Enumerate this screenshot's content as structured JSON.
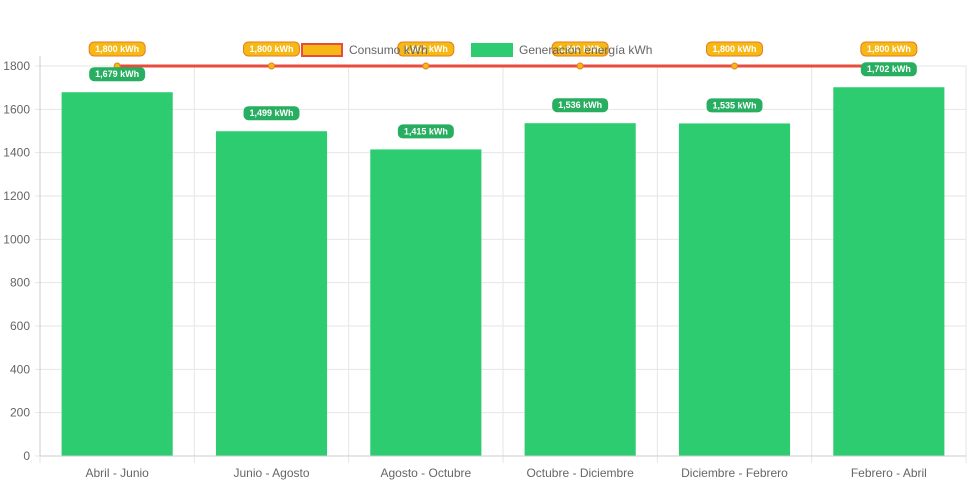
{
  "chart_data": {
    "type": "bar",
    "categories": [
      "Abril - Junio",
      "Junio - Agosto",
      "Agosto - Octubre",
      "Octubre - Diciembre",
      "Diciembre - Febrero",
      "Febrero - Abril"
    ],
    "series": [
      {
        "name": "Consumo kWh",
        "type": "line",
        "values": [
          1800,
          1800,
          1800,
          1800,
          1800,
          1800
        ],
        "labels": [
          "1,800 kWh",
          "1,800 kWh",
          "1,800 kWh",
          "1,800 kWh",
          "1,800 kWh",
          "1,800 kWh"
        ]
      },
      {
        "name": "Generación energía kWh",
        "type": "bar",
        "values": [
          1679,
          1499,
          1415,
          1536,
          1535,
          1702
        ],
        "labels": [
          "1,679 kWh",
          "1,499 kWh",
          "1,415 kWh",
          "1,536 kWh",
          "1,535 kWh",
          "1,702 kWh"
        ]
      }
    ],
    "ylim": [
      0,
      1800
    ],
    "yticks": [
      "0",
      "200",
      "400",
      "600",
      "800",
      "1000",
      "1200",
      "1400",
      "1600",
      "1800"
    ],
    "grid": true,
    "legend_position": "top",
    "colors": {
      "bar": "#2ecc71",
      "line": "#e74c3c",
      "point": "#f5b814",
      "line_badge_fill": "#f5b814",
      "line_badge_border": "#e67e22",
      "bar_badge_fill": "#27ae60",
      "grid": "#e6e6e6",
      "axis": "#cccccc"
    }
  }
}
